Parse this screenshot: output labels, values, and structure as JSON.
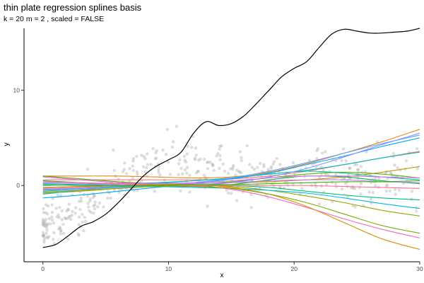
{
  "chart_data": {
    "type": "line",
    "title": "thin plate regression splines basis",
    "subtitle": "k = 20 m = 2 , scaled = FALSE",
    "xlabel": "x",
    "ylabel": "y",
    "xlim": [
      -1.5,
      30
    ],
    "ylim": [
      -8,
      16.5
    ],
    "x_ticks": [
      0,
      10,
      20,
      30
    ],
    "y_ticks": [
      0,
      10
    ],
    "grid": false,
    "legend": "none",
    "scatter_color": "#b3b3b3",
    "fit_line": {
      "color": "#000000",
      "x": [
        0,
        1,
        2,
        3,
        4,
        5,
        6,
        7,
        8,
        9,
        10,
        11,
        12,
        13,
        14,
        15,
        16,
        17,
        18,
        19,
        20,
        21,
        22,
        23,
        24,
        25,
        26,
        27,
        28,
        29,
        30
      ],
      "y": [
        -6.5,
        -6.2,
        -5.3,
        -4.3,
        -3.8,
        -3.0,
        -1.8,
        -0.4,
        1.0,
        2.0,
        2.7,
        3.5,
        5.5,
        6.7,
        6.3,
        6.5,
        7.3,
        8.6,
        10.0,
        11.4,
        12.3,
        13.0,
        14.5,
        15.9,
        16.4,
        16.2,
        16.0,
        16.0,
        16.1,
        16.2,
        16.5
      ]
    },
    "basis_x": [
      0,
      3,
      6,
      9,
      12,
      15,
      18,
      21,
      24,
      27,
      30
    ],
    "series": [
      {
        "color": "#F8766D",
        "values": [
          0.6,
          0.6,
          0.6,
          0.6,
          0.6,
          0.7,
          1.0,
          1.5,
          2.2,
          2.9,
          3.6
        ]
      },
      {
        "color": "#E7861B",
        "values": [
          1.0,
          1.0,
          1.0,
          0.9,
          0.8,
          0.9,
          1.4,
          2.3,
          3.4,
          4.6,
          5.9
        ]
      },
      {
        "color": "#C59900",
        "values": [
          -0.8,
          -0.6,
          -0.3,
          0.0,
          0.2,
          0.3,
          0.4,
          0.6,
          0.9,
          1.4,
          2.0
        ]
      },
      {
        "color": "#9AA600",
        "values": [
          -0.2,
          -0.1,
          0.0,
          0.1,
          0.1,
          -0.1,
          -0.5,
          -1.1,
          -1.8,
          -2.6,
          -3.2
        ]
      },
      {
        "color": "#5BB300",
        "values": [
          1.0,
          0.7,
          0.4,
          0.2,
          0.2,
          0.4,
          0.8,
          1.2,
          1.4,
          1.2,
          0.8
        ]
      },
      {
        "color": "#00BA38",
        "values": [
          0.5,
          0.3,
          0.1,
          0.0,
          -0.1,
          0.1,
          0.6,
          1.0,
          0.9,
          0.5,
          0.2
        ]
      },
      {
        "color": "#00BF7D",
        "values": [
          -0.5,
          -0.3,
          -0.1,
          0.0,
          0.1,
          0.0,
          -0.2,
          -0.6,
          -1.0,
          -1.3,
          -1.5
        ]
      },
      {
        "color": "#00C1A7",
        "values": [
          0.0,
          0.1,
          0.2,
          0.3,
          0.5,
          0.8,
          1.2,
          1.5,
          1.3,
          0.9,
          0.6
        ]
      },
      {
        "color": "#00BFC4",
        "values": [
          -0.9,
          -0.5,
          -0.1,
          0.2,
          0.5,
          0.8,
          1.2,
          1.6,
          2.2,
          2.9,
          3.5
        ]
      },
      {
        "color": "#00B8E7",
        "values": [
          0.2,
          0.1,
          0.0,
          -0.1,
          -0.2,
          -0.3,
          -0.5,
          -0.8,
          -1.3,
          -1.9,
          -2.4
        ]
      },
      {
        "color": "#00A9FF",
        "values": [
          -1.3,
          -1.0,
          -0.6,
          -0.2,
          0.2,
          0.7,
          1.3,
          2.2,
          3.1,
          4.1,
          5.0
        ]
      },
      {
        "color": "#619CFF",
        "values": [
          -0.6,
          -0.4,
          -0.2,
          0.0,
          0.3,
          0.8,
          1.5,
          2.4,
          3.4,
          4.4,
          5.3
        ]
      },
      {
        "color": "#8494FF",
        "values": [
          -0.4,
          -0.3,
          -0.2,
          -0.1,
          0.0,
          0.3,
          0.9,
          1.8,
          3.0,
          4.3,
          5.5
        ]
      },
      {
        "color": "#C77CFF",
        "values": [
          0.3,
          0.2,
          0.1,
          0.1,
          0.2,
          0.3,
          0.5,
          0.6,
          0.6,
          0.4,
          0.3
        ]
      },
      {
        "color": "#E76BF3",
        "values": [
          0.9,
          0.6,
          0.3,
          0.2,
          0.3,
          0.5,
          0.8,
          1.0,
          1.0,
          0.9,
          0.8
        ]
      },
      {
        "color": "#FF62BC",
        "values": [
          -0.3,
          -0.2,
          0.0,
          0.1,
          0.0,
          -0.4,
          -1.2,
          -2.3,
          -3.5,
          -4.6,
          -5.5
        ]
      },
      {
        "color": "#FF6C90",
        "values": [
          0.4,
          0.3,
          0.2,
          0.1,
          0.0,
          0.0,
          0.0,
          0.0,
          -0.1,
          -0.2,
          -0.3
        ]
      },
      {
        "color": "#D89000",
        "values": [
          -0.2,
          -0.1,
          0.0,
          0.1,
          0.1,
          -0.2,
          -0.9,
          -2.2,
          -3.9,
          -5.6,
          -6.7
        ]
      },
      {
        "color": "#7CAE00",
        "values": [
          -0.7,
          -0.5,
          -0.3,
          -0.1,
          -0.1,
          -0.3,
          -0.9,
          -1.8,
          -3.0,
          -4.2,
          -5.0
        ]
      },
      {
        "color": "#39B600",
        "values": [
          0.1,
          0.0,
          0.0,
          0.0,
          0.1,
          0.1,
          0.2,
          0.3,
          0.4,
          0.4,
          0.5
        ]
      }
    ]
  }
}
